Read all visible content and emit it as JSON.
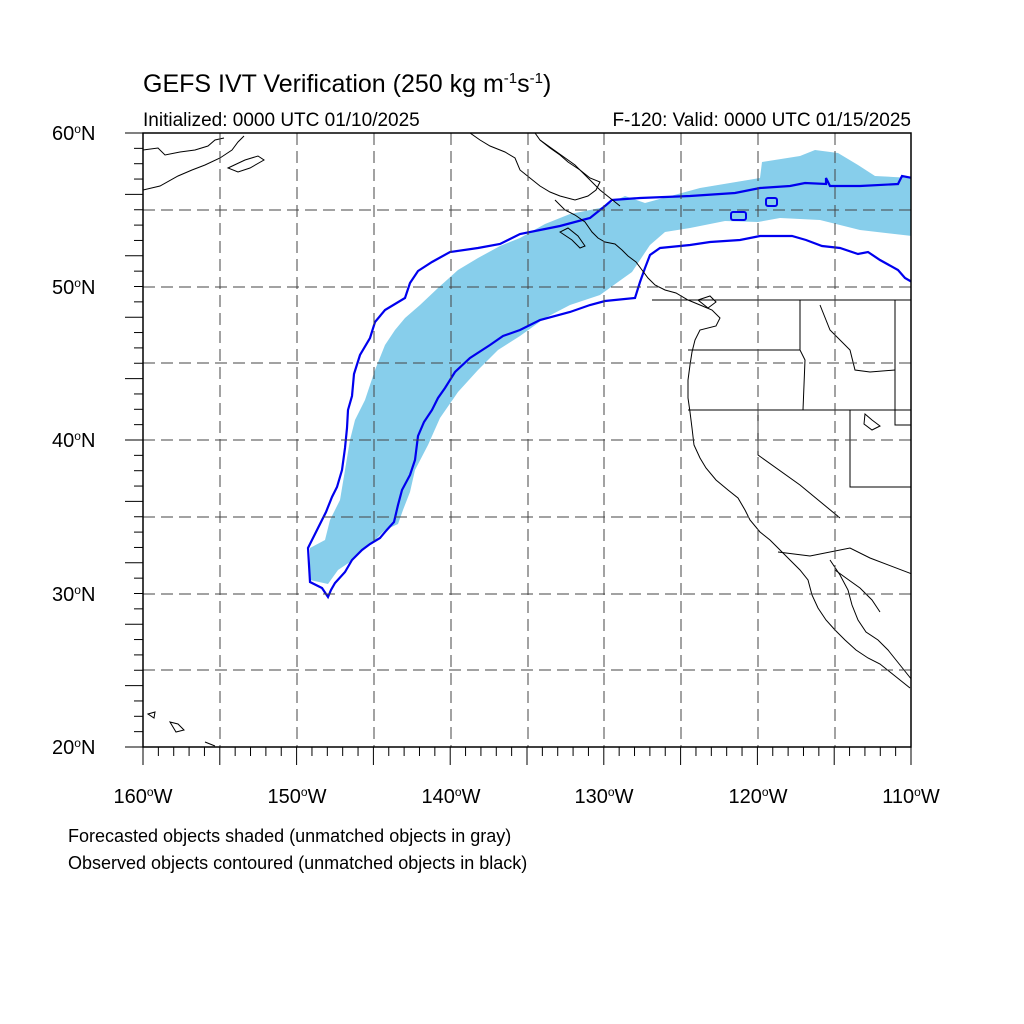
{
  "title": {
    "prefix": "GEFS IVT Verification (250 kg m",
    "exp1": "-1",
    "mid": "s",
    "exp2": "-1",
    "suffix": ")"
  },
  "subtitle_left": "Initialized: 0000 UTC 01/10/2025",
  "subtitle_right": "F-120: Valid: 0000 UTC 01/15/2025",
  "lat_labels": [
    {
      "value": "60",
      "suffix": "N"
    },
    {
      "value": "50",
      "suffix": "N"
    },
    {
      "value": "40",
      "suffix": "N"
    },
    {
      "value": "30",
      "suffix": "N"
    },
    {
      "value": "20",
      "suffix": "N"
    }
  ],
  "lon_labels": [
    {
      "value": "160",
      "suffix": "W"
    },
    {
      "value": "150",
      "suffix": "W"
    },
    {
      "value": "140",
      "suffix": "W"
    },
    {
      "value": "130",
      "suffix": "W"
    },
    {
      "value": "120",
      "suffix": "W"
    },
    {
      "value": "110",
      "suffix": "W"
    }
  ],
  "degree_symbol": "o",
  "notes": [
    "Forecasted objects shaded (unmatched objects in gray)",
    "Observed objects contoured (unmatched objects in black)"
  ],
  "colors": {
    "forecast_fill": "#87ceeb",
    "observed_contour": "#0000ee",
    "grid": "#444444",
    "coast": "#000000"
  }
}
